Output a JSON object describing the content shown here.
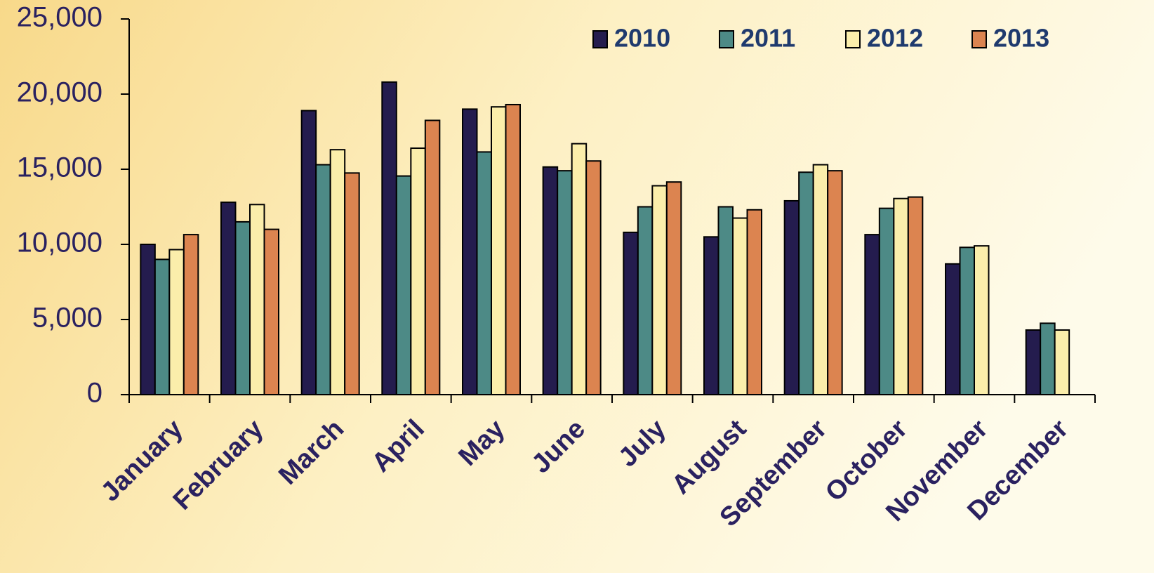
{
  "chart_data": {
    "type": "bar",
    "categories": [
      "January",
      "February",
      "March",
      "April",
      "May",
      "June",
      "July",
      "August",
      "September",
      "October",
      "November",
      "December"
    ],
    "series": [
      {
        "name": "2010",
        "color": "#241c4e",
        "values": [
          10000,
          12800,
          18900,
          20800,
          19000,
          15150,
          10800,
          10500,
          12900,
          10650,
          8700,
          4300
        ]
      },
      {
        "name": "2011",
        "color": "#4d8a86",
        "values": [
          9000,
          11500,
          15300,
          14550,
          16150,
          14900,
          12500,
          12500,
          14800,
          12400,
          9800,
          4750
        ]
      },
      {
        "name": "2012",
        "color": "#fbeeab",
        "values": [
          9650,
          12650,
          16300,
          16400,
          19150,
          16700,
          13900,
          11750,
          15300,
          13050,
          9900,
          4300
        ]
      },
      {
        "name": "2013",
        "color": "#dc8450",
        "values": [
          10650,
          11000,
          14750,
          18250,
          19300,
          15550,
          14150,
          12300,
          14900,
          13150,
          null,
          null
        ]
      }
    ],
    "ylim": [
      0,
      25000
    ],
    "yticks": [
      0,
      {
        "value": 5000,
        "label": "5,000"
      },
      {
        "value": 10000,
        "label": "10,000"
      },
      {
        "value": 15000,
        "label": "15,000"
      },
      {
        "value": 20000,
        "label": "20,000"
      },
      {
        "value": 25000,
        "label": "25,000"
      }
    ],
    "grid": false,
    "legend": "top-right"
  }
}
